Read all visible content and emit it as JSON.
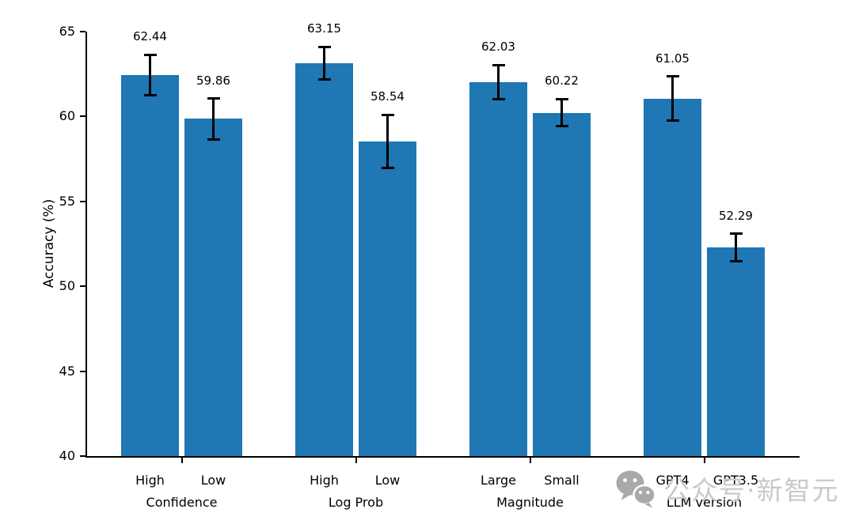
{
  "chart_data": {
    "type": "bar",
    "title": "",
    "xlabel": "",
    "ylabel": "Accuracy (%)",
    "ylim": [
      40,
      65
    ],
    "yticks": [
      40,
      45,
      50,
      55,
      60,
      65
    ],
    "grid": false,
    "legend": false,
    "bar_color": "#1f77b4",
    "error_bar_color": "#000000",
    "groups": [
      {
        "label": "Confidence",
        "bars": [
          {
            "label": "High",
            "value": 62.44,
            "error": 1.2
          },
          {
            "label": "Low",
            "value": 59.86,
            "error": 1.2
          }
        ]
      },
      {
        "label": "Log Prob",
        "bars": [
          {
            "label": "High",
            "value": 63.15,
            "error": 0.95
          },
          {
            "label": "Low",
            "value": 58.54,
            "error": 1.55
          }
        ]
      },
      {
        "label": "Magnitude",
        "bars": [
          {
            "label": "Large",
            "value": 62.03,
            "error": 1.0
          },
          {
            "label": "Small",
            "value": 60.22,
            "error": 0.8
          }
        ]
      },
      {
        "label": "LLM version",
        "bars": [
          {
            "label": "GPT4",
            "value": 61.05,
            "error": 1.3
          },
          {
            "label": "GPT3.5",
            "value": 52.29,
            "error": 0.8
          }
        ]
      }
    ]
  },
  "watermark": {
    "icon": "wechat-icon",
    "text": "公众号·新智元",
    "text_color": "#c9c9c9",
    "icon_color": "#a9a9a9"
  }
}
